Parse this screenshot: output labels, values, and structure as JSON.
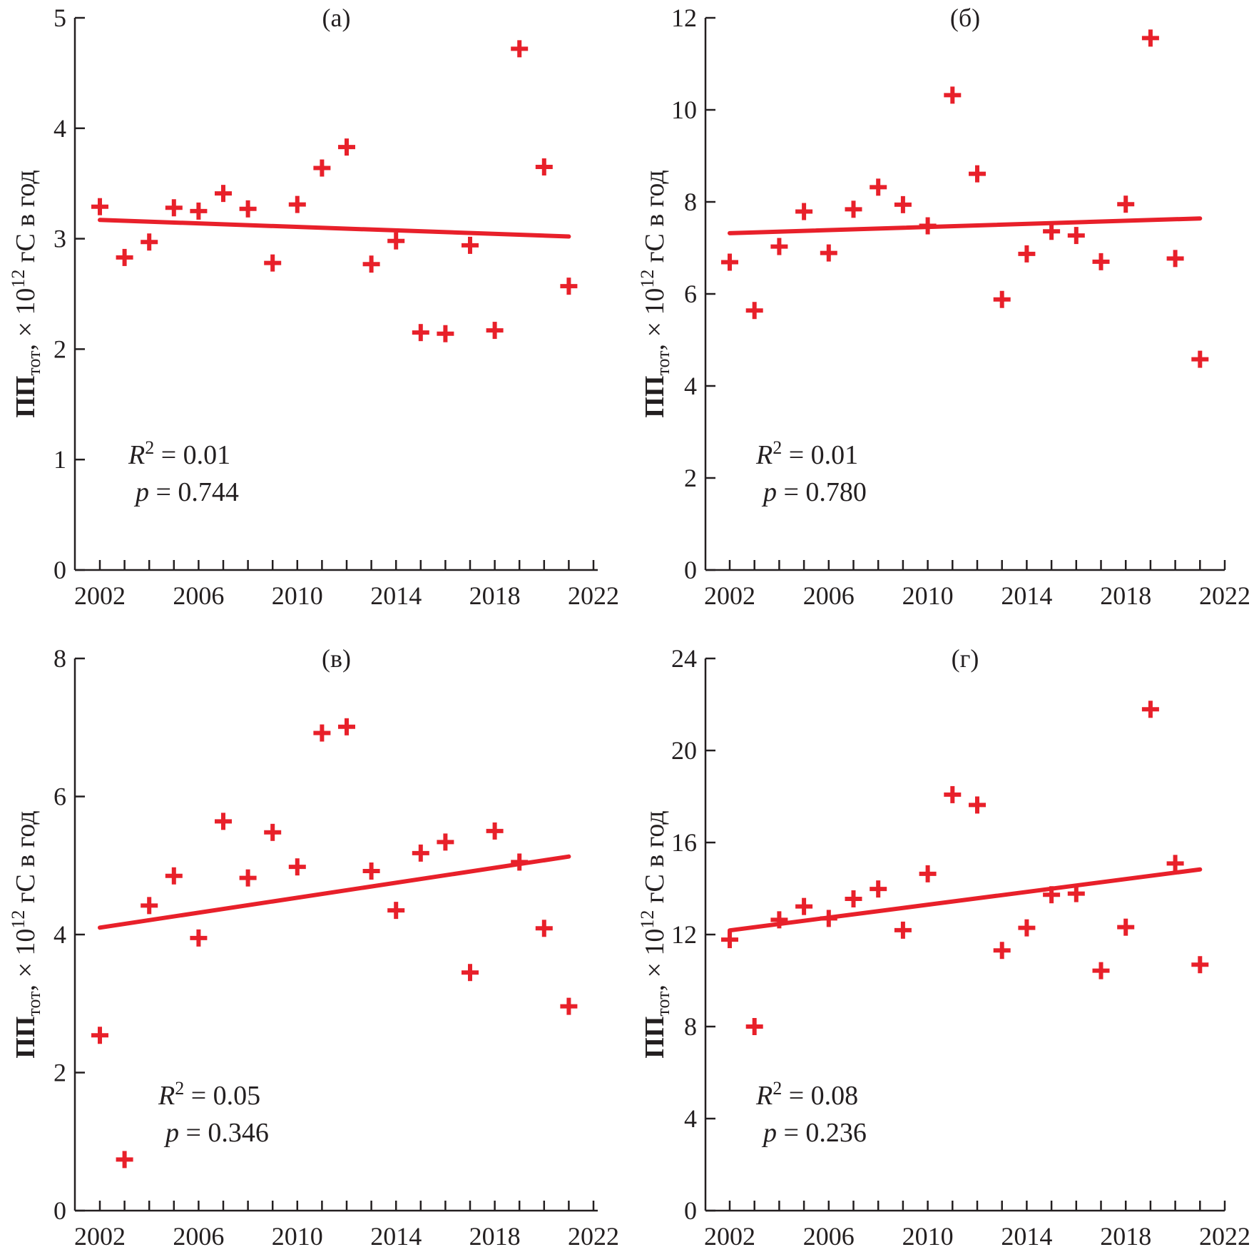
{
  "figure": {
    "marker_color": "#e8202a",
    "trend_color": "#e8202a",
    "axis_color": "#231f20"
  },
  "ylabel": {
    "main": "ПП",
    "sub": "тот",
    "middle": ", × 10",
    "sup": "12",
    "tail": " гС в год"
  },
  "chart_data": [
    {
      "type": "scatter",
      "panel": "(a)",
      "title": "(a)",
      "xlabel": "",
      "ylabel": "ПП_тот, × 10^12 гС в год",
      "xlim": [
        2002,
        2022
      ],
      "ylim": [
        0,
        5
      ],
      "xticks": [
        2002,
        2006,
        2010,
        2014,
        2018,
        2022
      ],
      "yticks": [
        0,
        1,
        2,
        3,
        4,
        5
      ],
      "x": [
        2002,
        2003,
        2004,
        2005,
        2006,
        2007,
        2008,
        2009,
        2010,
        2011,
        2012,
        2013,
        2014,
        2015,
        2016,
        2017,
        2018,
        2019,
        2020,
        2021
      ],
      "values": [
        3.29,
        2.83,
        2.97,
        3.28,
        3.25,
        3.41,
        3.27,
        2.78,
        3.31,
        3.64,
        3.83,
        2.77,
        2.98,
        2.15,
        2.14,
        2.94,
        2.17,
        4.72,
        3.65,
        2.57
      ],
      "trend": {
        "x": [
          2002,
          2021
        ],
        "y": [
          3.17,
          3.02
        ]
      },
      "r2_label": "R",
      "r2_sup": "2",
      "r2_value": " = 0.01",
      "p_label": "p",
      "p_value": " = 0.744"
    },
    {
      "type": "scatter",
      "panel": "(б)",
      "title": "(б)",
      "xlabel": "",
      "ylabel": "ПП_тот, × 10^12 гС в год",
      "xlim": [
        2002,
        2022
      ],
      "ylim": [
        0,
        12
      ],
      "xticks": [
        2002,
        2006,
        2010,
        2014,
        2018,
        2022
      ],
      "yticks": [
        0,
        2,
        4,
        6,
        8,
        10,
        12
      ],
      "x": [
        2002,
        2003,
        2004,
        2005,
        2006,
        2007,
        2008,
        2009,
        2010,
        2011,
        2012,
        2013,
        2014,
        2015,
        2016,
        2017,
        2018,
        2019,
        2020,
        2021
      ],
      "values": [
        6.69,
        5.64,
        7.03,
        7.79,
        6.89,
        7.84,
        8.32,
        7.94,
        7.48,
        10.32,
        8.61,
        5.88,
        6.87,
        7.36,
        7.27,
        6.7,
        7.95,
        11.56,
        6.77,
        4.58
      ],
      "trend": {
        "x": [
          2002,
          2021
        ],
        "y": [
          7.32,
          7.64
        ]
      },
      "r2_label": "R",
      "r2_sup": "2",
      "r2_value": " = 0.01",
      "p_label": "p",
      "p_value": " = 0.780"
    },
    {
      "type": "scatter",
      "panel": "(в)",
      "title": "(в)",
      "xlabel": "",
      "ylabel": "ПП_тот, × 10^12 гС в год",
      "xlim": [
        2002,
        2022
      ],
      "ylim": [
        0,
        8
      ],
      "xticks": [
        2002,
        2006,
        2010,
        2014,
        2018,
        2022
      ],
      "yticks": [
        0,
        2,
        4,
        6,
        8
      ],
      "x": [
        2002,
        2003,
        2004,
        2005,
        2006,
        2007,
        2008,
        2009,
        2010,
        2011,
        2012,
        2013,
        2014,
        2015,
        2016,
        2017,
        2018,
        2019,
        2020,
        2021
      ],
      "values": [
        2.54,
        0.74,
        4.42,
        4.85,
        3.95,
        5.64,
        4.82,
        5.48,
        4.98,
        6.92,
        7.01,
        4.92,
        4.35,
        5.18,
        5.34,
        3.45,
        5.5,
        5.05,
        4.09,
        2.96
      ],
      "trend": {
        "x": [
          2002,
          2021
        ],
        "y": [
          4.1,
          5.13
        ]
      },
      "r2_label": "R",
      "r2_sup": "2",
      "r2_value": " = 0.05",
      "p_label": "p",
      "p_value": " = 0.346"
    },
    {
      "type": "scatter",
      "panel": "(г)",
      "title": "(г)",
      "xlabel": "",
      "ylabel": "ПП_тот, × 10^12 гС в год",
      "xlim": [
        2002,
        2022
      ],
      "ylim": [
        0,
        24
      ],
      "xticks": [
        2002,
        2006,
        2010,
        2014,
        2018,
        2022
      ],
      "yticks": [
        0,
        4,
        8,
        12,
        16,
        20,
        24
      ],
      "x": [
        2002,
        2003,
        2004,
        2005,
        2006,
        2007,
        2008,
        2009,
        2010,
        2011,
        2012,
        2013,
        2014,
        2015,
        2016,
        2017,
        2018,
        2019,
        2020,
        2021
      ],
      "values": [
        11.78,
        8.0,
        12.64,
        13.22,
        12.7,
        13.55,
        13.98,
        12.19,
        14.64,
        18.08,
        17.63,
        11.31,
        12.29,
        13.73,
        13.78,
        10.43,
        12.32,
        21.79,
        15.09,
        10.69
      ],
      "trend": {
        "x": [
          2002,
          2021
        ],
        "y": [
          12.18,
          14.83
        ]
      },
      "r2_label": "R",
      "r2_sup": "2",
      "r2_value": " = 0.08",
      "p_label": "p",
      "p_value": " = 0.236"
    }
  ]
}
